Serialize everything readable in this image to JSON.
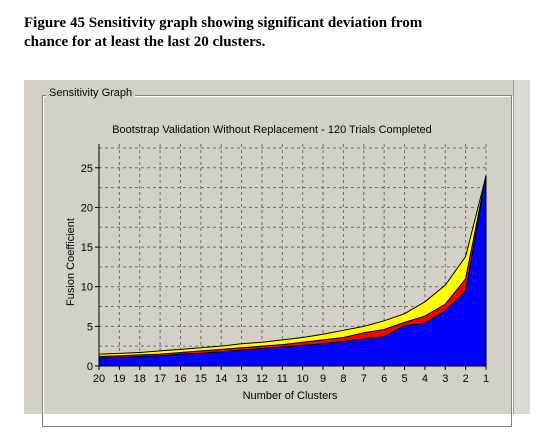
{
  "caption": {
    "line1": "Figure 45 Sensitivity graph showing significant deviation from",
    "line2": "chance for at least the last 20 clusters."
  },
  "panel": {
    "label": "Sensitivity Graph"
  },
  "colors": {
    "blue": "#0000ff",
    "red": "#ff0000",
    "yellow": "#ffff00",
    "background": "#d4d0c8"
  },
  "chart_data": {
    "type": "area",
    "title": "Bootstrap Validation Without Replacement - 120 Trials Completed",
    "xlabel": "Number of Clusters",
    "ylabel": "Fusion Coefficient",
    "x": [
      20,
      19,
      18,
      17,
      16,
      15,
      14,
      13,
      12,
      11,
      10,
      9,
      8,
      7,
      6,
      5,
      4,
      3,
      2,
      1
    ],
    "ylim": [
      0,
      28
    ],
    "yticks": [
      0,
      5,
      10,
      15,
      20,
      25
    ],
    "grid": true,
    "series": [
      {
        "values": [
          1.0,
          1.1,
          1.2,
          1.3,
          1.5,
          1.6,
          1.8,
          2.0,
          2.2,
          2.4,
          2.6,
          2.8,
          3.1,
          3.4,
          3.7,
          5.1,
          5.4,
          7.0,
          9.4,
          24.0
        ]
      },
      {
        "values": [
          1.2,
          1.3,
          1.4,
          1.5,
          1.7,
          1.9,
          2.1,
          2.3,
          2.5,
          2.7,
          3.0,
          3.3,
          3.6,
          4.2,
          4.6,
          5.5,
          6.3,
          7.8,
          11.0,
          24.0
        ]
      },
      {
        "values": [
          1.5,
          1.6,
          1.7,
          1.9,
          2.1,
          2.3,
          2.5,
          2.8,
          3.0,
          3.3,
          3.6,
          4.0,
          4.5,
          5.0,
          5.7,
          6.6,
          8.1,
          10.2,
          13.8,
          24.0
        ]
      }
    ]
  }
}
